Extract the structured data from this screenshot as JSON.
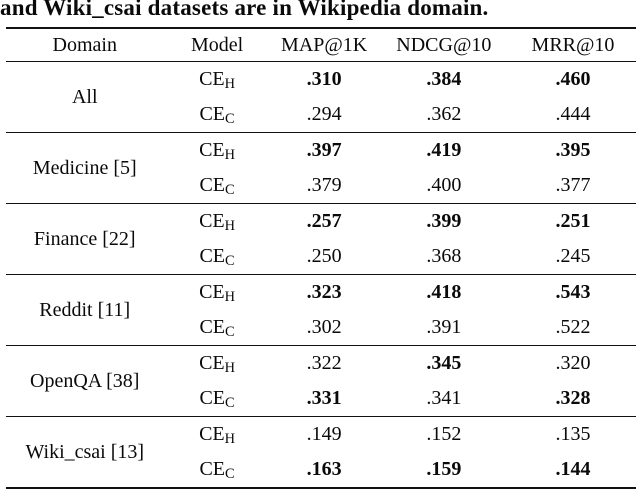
{
  "caption": "and Wiki_csai datasets are in Wikipedia domain.",
  "colors": {
    "text": "#0a0a0a",
    "background": "#ffffff",
    "rule": "#111111"
  },
  "table": {
    "headers": [
      "Domain",
      "Model",
      "MAP@1K",
      "NDCG@10",
      "MRR@10"
    ],
    "model_base": "CE",
    "groups": [
      {
        "domain": "All",
        "rows": [
          {
            "model_sub": "H",
            "values": [
              ".310",
              ".384",
              ".460"
            ],
            "bold": [
              true,
              true,
              true
            ]
          },
          {
            "model_sub": "C",
            "values": [
              ".294",
              ".362",
              ".444"
            ],
            "bold": [
              false,
              false,
              false
            ]
          }
        ]
      },
      {
        "domain": "Medicine [5]",
        "rows": [
          {
            "model_sub": "H",
            "values": [
              ".397",
              ".419",
              ".395"
            ],
            "bold": [
              true,
              true,
              true
            ]
          },
          {
            "model_sub": "C",
            "values": [
              ".379",
              ".400",
              ".377"
            ],
            "bold": [
              false,
              false,
              false
            ]
          }
        ]
      },
      {
        "domain": "Finance [22]",
        "rows": [
          {
            "model_sub": "H",
            "values": [
              ".257",
              ".399",
              ".251"
            ],
            "bold": [
              true,
              true,
              true
            ]
          },
          {
            "model_sub": "C",
            "values": [
              ".250",
              ".368",
              ".245"
            ],
            "bold": [
              false,
              false,
              false
            ]
          }
        ]
      },
      {
        "domain": "Reddit [11]",
        "rows": [
          {
            "model_sub": "H",
            "values": [
              ".323",
              ".418",
              ".543"
            ],
            "bold": [
              true,
              true,
              true
            ]
          },
          {
            "model_sub": "C",
            "values": [
              ".302",
              ".391",
              ".522"
            ],
            "bold": [
              false,
              false,
              false
            ]
          }
        ]
      },
      {
        "domain": "OpenQA [38]",
        "rows": [
          {
            "model_sub": "H",
            "values": [
              ".322",
              ".345",
              ".320"
            ],
            "bold": [
              false,
              true,
              false
            ]
          },
          {
            "model_sub": "C",
            "values": [
              ".331",
              ".341",
              ".328"
            ],
            "bold": [
              true,
              false,
              true
            ]
          }
        ]
      },
      {
        "domain": "Wiki_csai [13]",
        "rows": [
          {
            "model_sub": "H",
            "values": [
              ".149",
              ".152",
              ".135"
            ],
            "bold": [
              false,
              false,
              false
            ]
          },
          {
            "model_sub": "C",
            "values": [
              ".163",
              ".159",
              ".144"
            ],
            "bold": [
              true,
              true,
              true
            ]
          }
        ]
      }
    ]
  }
}
